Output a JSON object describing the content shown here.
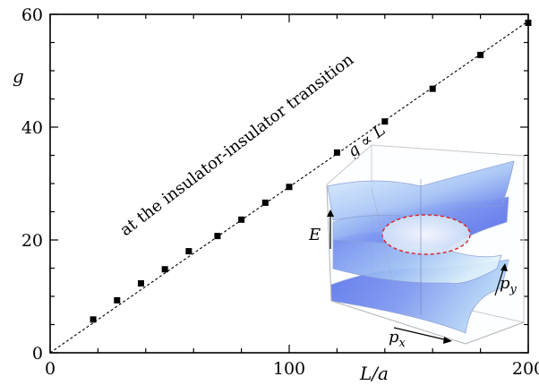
{
  "chart_data": {
    "type": "scatter",
    "xlabel": "L/a",
    "ylabel": "g",
    "xlim": [
      0,
      200
    ],
    "ylim": [
      0,
      60
    ],
    "xticks": [
      "0",
      "100",
      "200"
    ],
    "yticks": [
      "0",
      "20",
      "40",
      "60"
    ],
    "series": [
      {
        "x": [
          18,
          28,
          38,
          48,
          58,
          70,
          80,
          90,
          100,
          120,
          140,
          160,
          180,
          200
        ],
        "y": [
          5.9,
          9.3,
          12.3,
          14.8,
          18.0,
          20.7,
          23.6,
          26.6,
          29.4,
          35.5,
          41.0,
          46.8,
          52.8,
          58.5
        ]
      }
    ],
    "fit_line": {
      "x": [
        0,
        200
      ],
      "y": [
        0,
        58.8
      ]
    },
    "fit_label": "g ∝ L",
    "annotation": "at the insulator-insulator transition",
    "grid": false
  },
  "inset": {
    "energy_label": "E",
    "px_label": "p",
    "px_sub": "x",
    "py_label": "p",
    "py_sub": "y"
  },
  "colors": {
    "surface_light": "#d8eefa",
    "surface_blue": "#6f86f0",
    "ring": "#e02020"
  }
}
